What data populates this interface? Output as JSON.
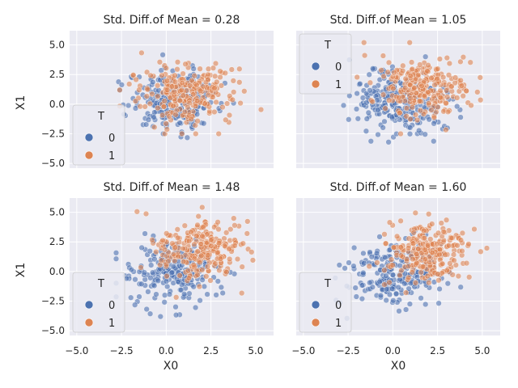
{
  "chart_data": {
    "type": "scatter",
    "style": {
      "panel_background": "#EAEAF2",
      "grid_color": "#FFFFFF",
      "point_alpha": 0.6,
      "point_edge": "#FFFFFF",
      "grid": true,
      "shared_x": true,
      "shared_y": true,
      "layout": "2x2"
    },
    "xlabel": "X0",
    "ylabel": "X1",
    "xlim": [
      -5.4,
      6.0
    ],
    "ylim": [
      -5.4,
      6.2
    ],
    "xticks": [
      -5.0,
      -2.5,
      0.0,
      2.5,
      5.0
    ],
    "yticks": [
      -5.0,
      -2.5,
      0.0,
      2.5,
      5.0
    ],
    "xtick_labels": [
      "−5.0",
      "−2.5",
      "0.0",
      "2.5",
      "5.0"
    ],
    "ytick_labels": [
      "−5.0",
      "−2.5",
      "0.0",
      "2.5",
      "5.0"
    ],
    "legend": {
      "title": "T",
      "location": "lower-left",
      "entries": [
        {
          "label": "0",
          "color": "#4C72B0"
        },
        {
          "label": "1",
          "color": "#DD8452"
        }
      ]
    },
    "approximate_points_per_group": 250,
    "panels": [
      {
        "title": "Std. Diff.of Mean = 0.28",
        "legend_location": "lower-left",
        "series": [
          {
            "name": "0",
            "color": "#4C72B0",
            "mean": [
              0.5,
              0.4
            ],
            "sd": [
              1.25,
              1.25
            ],
            "x_range": [
              -3.0,
              5.2
            ],
            "y_range": [
              -3.5,
              4.5
            ]
          },
          {
            "name": "1",
            "color": "#DD8452",
            "mean": [
              1.3,
              0.9
            ],
            "sd": [
              1.35,
              1.35
            ],
            "x_range": [
              -2.6,
              5.3
            ],
            "y_range": [
              -2.5,
              5.2
            ]
          }
        ]
      },
      {
        "title": "Std. Diff.of Mean = 1.05",
        "legend_location": "upper-left",
        "series": [
          {
            "name": "0",
            "color": "#4C72B0",
            "mean": [
              0.3,
              0.2
            ],
            "sd": [
              1.3,
              1.3
            ],
            "x_range": [
              -3.5,
              5.0
            ],
            "y_range": [
              -3.8,
              4.2
            ]
          },
          {
            "name": "1",
            "color": "#DD8452",
            "mean": [
              1.7,
              1.5
            ],
            "sd": [
              1.2,
              1.2
            ],
            "x_range": [
              -2.0,
              4.9
            ],
            "y_range": [
              -2.5,
              5.2
            ]
          }
        ]
      },
      {
        "title": "Std. Diff.of Mean = 1.48",
        "legend_location": "lower-left",
        "series": [
          {
            "name": "0",
            "color": "#4C72B0",
            "mean": [
              0.4,
              -0.1
            ],
            "sd": [
              1.2,
              1.3
            ],
            "x_range": [
              -2.8,
              4.5
            ],
            "y_range": [
              -3.8,
              3.2
            ]
          },
          {
            "name": "1",
            "color": "#DD8452",
            "mean": [
              1.9,
              1.9
            ],
            "sd": [
              1.25,
              1.2
            ],
            "x_range": [
              -2.0,
              5.5
            ],
            "y_range": [
              -2.5,
              5.5
            ]
          }
        ]
      },
      {
        "title": "Std. Diff.of Mean = 1.60",
        "legend_location": "lower-left",
        "series": [
          {
            "name": "0",
            "color": "#4C72B0",
            "mean": [
              0.2,
              -0.1
            ],
            "sd": [
              1.3,
              1.3
            ],
            "x_range": [
              -5.0,
              4.0
            ],
            "y_range": [
              -4.8,
              3.8
            ]
          },
          {
            "name": "1",
            "color": "#DD8452",
            "mean": [
              2.0,
              1.7
            ],
            "sd": [
              1.2,
              1.2
            ],
            "x_range": [
              -1.5,
              5.7
            ],
            "y_range": [
              -2.0,
              5.5
            ]
          }
        ]
      }
    ]
  }
}
